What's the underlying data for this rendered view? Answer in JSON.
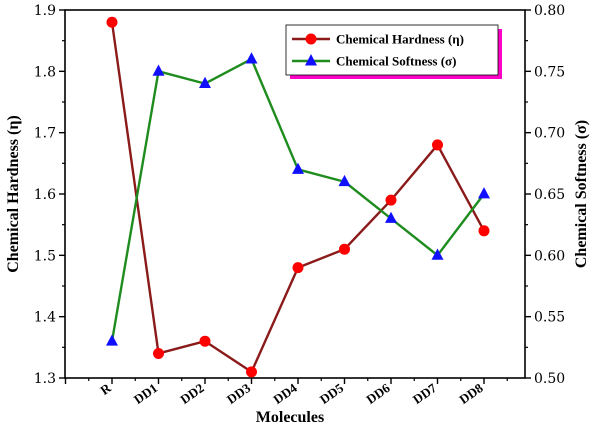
{
  "chart_data": {
    "type": "line",
    "categories": [
      "R",
      "DD1",
      "DD2",
      "DD3",
      "DD4",
      "DD5",
      "DD6",
      "DD7",
      "DD8"
    ],
    "xlabel": "Molecules",
    "ylabel_left": "Chemical Hardness (η)",
    "ylabel_right": "Chemical Softness (σ)",
    "ylim_left": [
      1.3,
      1.9
    ],
    "ylim_right": [
      0.5,
      0.8
    ],
    "yticks_left": [
      "1.3",
      "1.4",
      "1.5",
      "1.6",
      "1.7",
      "1.8",
      "1.9"
    ],
    "yticks_right": [
      "0.50",
      "0.55",
      "0.60",
      "0.65",
      "0.70",
      "0.75",
      "0.80"
    ],
    "grid": false,
    "legend_position": "top-right",
    "series": [
      {
        "name": "Chemical Hardness (η)",
        "axis": "left",
        "marker": "circle",
        "line_color": "#8B1A1A",
        "marker_color": "#FF0000",
        "values": [
          1.88,
          1.34,
          1.36,
          1.31,
          1.48,
          1.51,
          1.59,
          1.68,
          1.54
        ]
      },
      {
        "name": "Chemical Softness (σ)",
        "axis": "right",
        "marker": "triangle",
        "line_color": "#1E8C1E",
        "marker_color": "#1010FF",
        "values": [
          0.53,
          0.75,
          0.74,
          0.76,
          0.67,
          0.66,
          0.63,
          0.6,
          0.65
        ]
      }
    ],
    "legend_accent_color": "#FF00C8"
  }
}
